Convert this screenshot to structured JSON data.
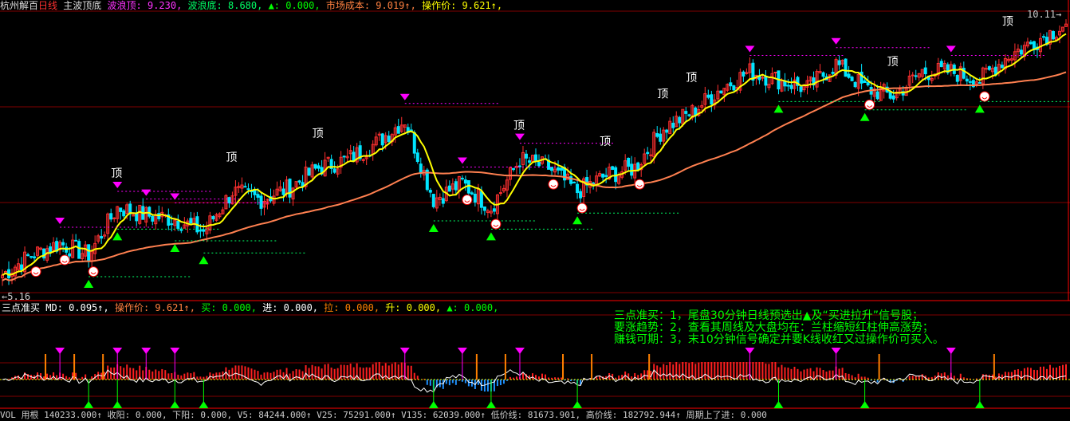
{
  "header": {
    "stock": "杭州解百",
    "period": "日线",
    "indicator": "主波顶底",
    "items": [
      {
        "label": "波浪顶",
        "value": "9.230",
        "color": "#ff33ff"
      },
      {
        "label": "波浪底",
        "value": "8.680",
        "color": "#00ff66"
      },
      {
        "label": "▲",
        "value": "0.000",
        "color": "#00ff00"
      },
      {
        "label": "市场成本",
        "value": "9.019↑",
        "color": "#ff8040"
      },
      {
        "label": "操作价",
        "value": "9.621↑",
        "color": "#ffff00"
      }
    ]
  },
  "sub_header": {
    "indicator": "三点准买",
    "items": [
      {
        "label": "MD",
        "value": "0.095↑",
        "color": "#ffffff"
      },
      {
        "label": "操作价",
        "value": "9.621↑",
        "color": "#ff8040"
      },
      {
        "label": "买",
        "value": "0.000",
        "color": "#00ff00"
      },
      {
        "label": "进",
        "value": "0.000",
        "color": "#ffffff"
      },
      {
        "label": "拉",
        "value": "0.000",
        "color": "#ff8000"
      },
      {
        "label": "升",
        "value": "0.000",
        "color": "#ffff00"
      },
      {
        "label": "▲",
        "value": "0.000",
        "color": "#00ff00"
      }
    ]
  },
  "notes": [
    "三点准买：1，尾盘30分钟日线预选出▲及“买进拉升”信号股；",
    "要涨趋势：2，查看其周线及大盘均在：兰柱缩短红柱伸高涨势；",
    "赚钱可期：3，末10分钟信号确定并要K线收红又过操作价可买入。"
  ],
  "footer": "VOL 用根 140233.000↑  收阳: 0.000,  下阳: 0.000,  V5: 84244.000↑  V25: 75291.000↑  V135: 62039.000↑  低价线: 81673.901,  高价线: 182792.944↑  周期上了进: 0.000",
  "chart_data": {
    "type": "candlestick",
    "price_high_label": "10.11",
    "price_low_label": "5.16",
    "ylim": [
      5.1,
      10.2
    ],
    "closes": [
      5.38,
      5.74,
      5.95,
      5.74,
      6.6,
      6.46,
      6.39,
      6.17,
      6.89,
      6.75,
      6.96,
      7.32,
      7.47,
      7.76,
      8.19,
      6.75,
      7.04,
      6.6,
      7.47,
      7.32,
      6.89,
      7.18,
      7.32,
      8.04,
      8.33,
      8.76,
      9.06,
      8.91,
      8.76,
      9.2,
      8.76,
      8.62,
      9.06,
      9.06,
      8.91,
      9.35,
      9.63,
      9.92
    ],
    "top_label": "顶",
    "top_signals": [
      4,
      8,
      11,
      18,
      21,
      23,
      24,
      35,
      31
    ],
    "peak_markers": [
      2,
      4,
      5,
      6,
      14,
      16,
      18,
      29,
      26,
      33
    ],
    "bottom_markers": [
      3,
      4,
      6,
      7,
      15,
      17,
      20,
      27,
      30,
      34
    ],
    "smileys": [
      1,
      2,
      3,
      16,
      17,
      19,
      20,
      22,
      30,
      34
    ],
    "colors": {
      "up": "#ff3030",
      "down": "#00e5ff",
      "ma_short": "#ffff00",
      "ma_long": "#ff8050",
      "grid": "#800000"
    }
  }
}
